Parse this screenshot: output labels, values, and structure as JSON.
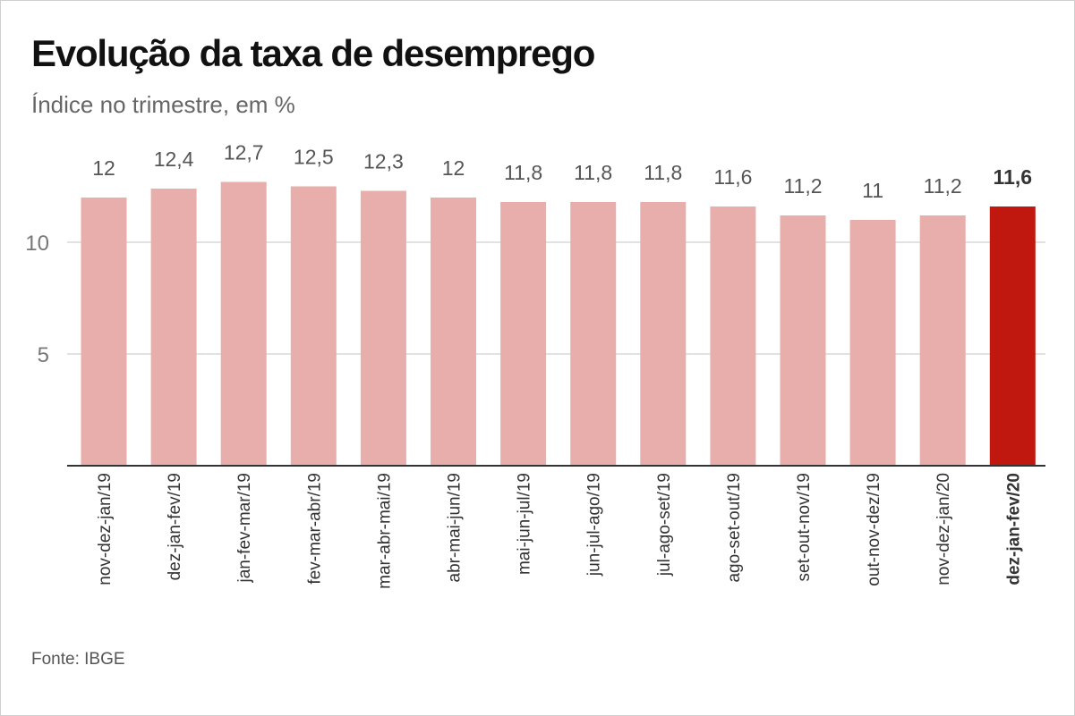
{
  "title": "Evolução da taxa de desemprego",
  "subtitle": "Índice no trimestre, em %",
  "source": "Fonte: IBGE",
  "colors": {
    "bar": "#e8aeab",
    "highlight": "#c0180e",
    "grid": "#d9d9d9",
    "axis": "#333333",
    "tick_text": "#777777",
    "label_text": "#555555",
    "highlight_text": "#333333"
  },
  "chart_data": {
    "type": "bar",
    "title": "Evolução da taxa de desemprego",
    "subtitle": "Índice no trimestre, em %",
    "xlabel": "",
    "ylabel": "",
    "ylim": [
      0,
      13.5
    ],
    "yticks": [
      5,
      10
    ],
    "ytick_labels": [
      "5",
      "10"
    ],
    "grid": true,
    "categories": [
      "nov-dez-jan/19",
      "dez-jan-fev/19",
      "jan-fev-mar/19",
      "fev-mar-abr/19",
      "mar-abr-mai/19",
      "abr-mai-jun/19",
      "mai-jun-jul/19",
      "jun-jul-ago/19",
      "jul-ago-set/19",
      "ago-set-out/19",
      "set-out-nov/19",
      "out-nov-dez/19",
      "nov-dez-jan/20",
      "dez-jan-fev/20"
    ],
    "values": [
      12,
      12.4,
      12.7,
      12.5,
      12.3,
      12,
      11.8,
      11.8,
      11.8,
      11.6,
      11.2,
      11,
      11.2,
      11.6
    ],
    "value_labels": [
      "12",
      "12,4",
      "12,7",
      "12,5",
      "12,3",
      "12",
      "11,8",
      "11,8",
      "11,8",
      "11,6",
      "11,2",
      "11",
      "11,2",
      "11,6"
    ],
    "highlight_index": 13
  }
}
